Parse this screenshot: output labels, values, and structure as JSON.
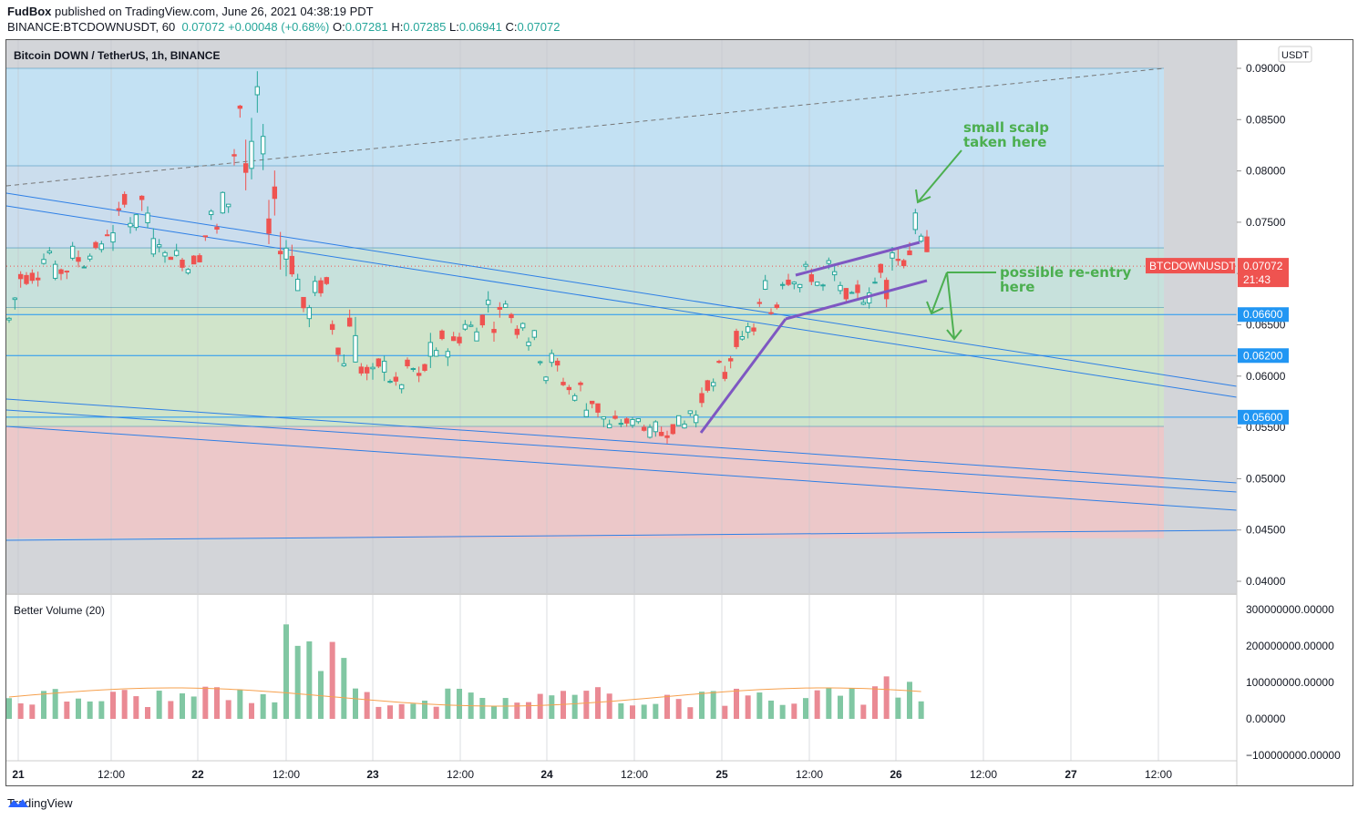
{
  "header": {
    "author": "FudBox",
    "published": "published on TradingView.com, June 26, 2021 04:38:19 PDT",
    "symbol_line": "BINANCE:BTCDOWNUSDT, 60",
    "last": "0.07072",
    "change": "+0.00048 (+0.68%)",
    "o": "0.07281",
    "h": "0.07285",
    "l": "0.06941",
    "c": "0.07072"
  },
  "chart": {
    "title": "Bitcoin DOWN / TetherUS, 1h, BINANCE",
    "currency": "USDT",
    "price_ticks": [
      "0.09000",
      "0.08500",
      "0.08000",
      "0.07500",
      "0.07000",
      "0.06500",
      "0.06000",
      "0.05500",
      "0.05000",
      "0.04500",
      "0.04000"
    ],
    "level_labels": [
      "0.06600",
      "0.06200",
      "0.05600"
    ],
    "last_price_tag": "BTCDOWNUSDT",
    "last_price_value": "0.07072",
    "countdown": "21:43",
    "annotation_scalp": [
      "small scalp",
      "taken here"
    ],
    "annotation_reentry": [
      "possible re-entry",
      "here"
    ],
    "time_ticks": [
      "21",
      "12:00",
      "22",
      "12:00",
      "23",
      "12:00",
      "24",
      "12:00",
      "25",
      "12:00",
      "26",
      "12:00",
      "27",
      "12:00"
    ]
  },
  "volume_pane": {
    "title": "Better Volume (20)",
    "ticks": [
      "300000000.00000",
      "200000000.00000",
      "100000000.00000",
      "0.00000",
      "−100000000.00000"
    ]
  },
  "footer": {
    "brand": "TradingView"
  },
  "colors": {
    "up": "#26a69a",
    "down": "#ef5350",
    "trend": "#2962ff",
    "pattern": "#7e57c2",
    "annotation": "#4caf50"
  },
  "chart_data": {
    "type": "candlestick",
    "symbol": "BTCDOWNUSDT",
    "interval": "1h",
    "ylim": [
      0.04,
      0.091
    ],
    "horizontal_levels": [
      0.066,
      0.062,
      0.056
    ],
    "zones": [
      {
        "from": 0.0805,
        "to": 0.09
      },
      {
        "from": 0.0725,
        "to": 0.0805
      },
      {
        "from": 0.0667,
        "to": 0.0725
      },
      {
        "from": 0.0551,
        "to": 0.0667
      },
      {
        "from": 0.0442,
        "to": 0.0551
      }
    ],
    "ohlc_sampled": [
      [
        0.0655,
        0.07,
        0.065,
        0.0695
      ],
      [
        0.0695,
        0.0715,
        0.0685,
        0.0708
      ],
      [
        0.0708,
        0.0722,
        0.0695,
        0.07
      ],
      [
        0.07,
        0.0732,
        0.0695,
        0.0725
      ],
      [
        0.0725,
        0.074,
        0.07,
        0.0705
      ],
      [
        0.0705,
        0.0712,
        0.0695,
        0.071
      ],
      [
        0.071,
        0.0735,
        0.0705,
        0.0728
      ],
      [
        0.0728,
        0.076,
        0.072,
        0.0752
      ],
      [
        0.0752,
        0.0785,
        0.0745,
        0.078
      ],
      [
        0.078,
        0.079,
        0.074,
        0.0748
      ],
      [
        0.0748,
        0.075,
        0.0715,
        0.0722
      ],
      [
        0.0722,
        0.073,
        0.0695,
        0.07
      ],
      [
        0.07,
        0.0718,
        0.0692,
        0.0712
      ],
      [
        0.0712,
        0.073,
        0.0705,
        0.072
      ],
      [
        0.072,
        0.077,
        0.0715,
        0.0765
      ],
      [
        0.0765,
        0.08,
        0.0755,
        0.0795
      ],
      [
        0.0795,
        0.09,
        0.0785,
        0.088
      ],
      [
        0.088,
        0.0885,
        0.08,
        0.081
      ],
      [
        0.081,
        0.0815,
        0.072,
        0.073
      ],
      [
        0.073,
        0.0735,
        0.066,
        0.0668
      ],
      [
        0.0668,
        0.0695,
        0.0645,
        0.0685
      ],
      [
        0.0685,
        0.069,
        0.065,
        0.066
      ],
      [
        0.066,
        0.07,
        0.0655,
        0.069
      ],
      [
        0.069,
        0.0695,
        0.06,
        0.061
      ],
      [
        0.061,
        0.0625,
        0.0575,
        0.0612
      ],
      [
        0.0612,
        0.062,
        0.058,
        0.0598
      ],
      [
        0.0598,
        0.0618,
        0.059,
        0.061
      ],
      [
        0.061,
        0.0615,
        0.058,
        0.059
      ],
      [
        0.059,
        0.061,
        0.0555,
        0.0605
      ],
      [
        0.0605,
        0.063,
        0.06,
        0.0625
      ],
      [
        0.0625,
        0.066,
        0.062,
        0.0652
      ],
      [
        0.0652,
        0.0665,
        0.063,
        0.064
      ],
      [
        0.064,
        0.066,
        0.062,
        0.0645
      ],
      [
        0.0645,
        0.068,
        0.064,
        0.0675
      ],
      [
        0.0675,
        0.0685,
        0.066,
        0.0668
      ],
      [
        0.0668,
        0.0675,
        0.0635,
        0.064
      ],
      [
        0.064,
        0.065,
        0.0615,
        0.0622
      ],
      [
        0.0622,
        0.0628,
        0.059,
        0.0595
      ],
      [
        0.0595,
        0.0605,
        0.058,
        0.06
      ],
      [
        0.06,
        0.061,
        0.057,
        0.0578
      ],
      [
        0.0578,
        0.0585,
        0.054,
        0.0548
      ],
      [
        0.0548,
        0.0562,
        0.0535,
        0.0555
      ],
      [
        0.0555,
        0.0568,
        0.0548,
        0.056
      ],
      [
        0.056,
        0.0572,
        0.055,
        0.0555
      ],
      [
        0.0555,
        0.057,
        0.054,
        0.0545
      ],
      [
        0.0545,
        0.055,
        0.052,
        0.054
      ],
      [
        0.054,
        0.056,
        0.0535,
        0.0555
      ],
      [
        0.0555,
        0.058,
        0.055,
        0.0575
      ],
      [
        0.0575,
        0.06,
        0.057,
        0.0595
      ],
      [
        0.0595,
        0.0625,
        0.059,
        0.062
      ],
      [
        0.062,
        0.0645,
        0.0612,
        0.064
      ],
      [
        0.064,
        0.066,
        0.0635,
        0.0655
      ],
      [
        0.0655,
        0.07,
        0.065,
        0.0695
      ],
      [
        0.0695,
        0.071,
        0.067,
        0.068
      ],
      [
        0.068,
        0.07,
        0.0665,
        0.0698
      ],
      [
        0.0698,
        0.072,
        0.069,
        0.0712
      ],
      [
        0.0712,
        0.0718,
        0.068,
        0.0685
      ],
      [
        0.0685,
        0.0695,
        0.0672,
        0.069
      ],
      [
        0.069,
        0.07,
        0.0668,
        0.0675
      ],
      [
        0.0675,
        0.068,
        0.065,
        0.0668
      ],
      [
        0.0668,
        0.072,
        0.066,
        0.0712
      ],
      [
        0.0712,
        0.077,
        0.0705,
        0.076
      ],
      [
        0.076,
        0.0775,
        0.0725,
        0.0728
      ],
      [
        0.0728,
        0.073,
        0.0694,
        0.0707
      ]
    ],
    "volume_ma_period": 20
  }
}
